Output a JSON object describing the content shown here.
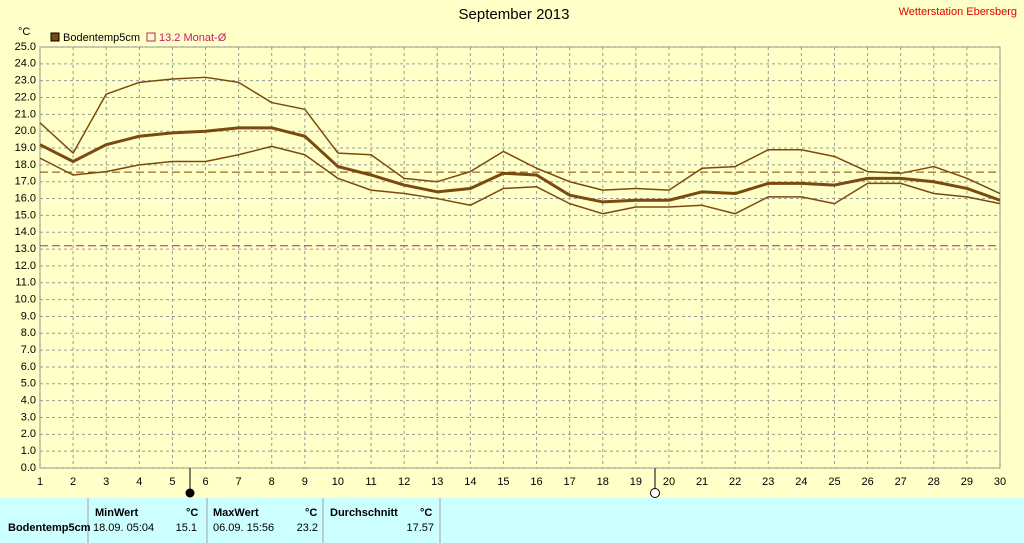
{
  "chart_data": {
    "type": "line",
    "title": "September 2013",
    "station": "Wetterstation Ebersberg",
    "y_unit": "°C",
    "x": [
      1,
      2,
      3,
      4,
      5,
      6,
      7,
      8,
      9,
      10,
      11,
      12,
      13,
      14,
      15,
      16,
      17,
      18,
      19,
      20,
      21,
      22,
      23,
      24,
      25,
      26,
      27,
      28,
      29,
      30
    ],
    "xlim": [
      1,
      30
    ],
    "xticks": [
      1,
      2,
      3,
      4,
      5,
      6,
      7,
      8,
      9,
      10,
      11,
      12,
      13,
      14,
      15,
      16,
      17,
      18,
      19,
      20,
      21,
      22,
      23,
      24,
      25,
      26,
      27,
      28,
      29,
      30
    ],
    "ylim": [
      0,
      25
    ],
    "yticks": [
      {
        "value": 0,
        "label": "0.0"
      },
      {
        "value": 1,
        "label": "1.0"
      },
      {
        "value": 2,
        "label": "2.0"
      },
      {
        "value": 3,
        "label": "3.0"
      },
      {
        "value": 4,
        "label": "4.0"
      },
      {
        "value": 5,
        "label": "5.0"
      },
      {
        "value": 6,
        "label": "6.0"
      },
      {
        "value": 7,
        "label": "7.0"
      },
      {
        "value": 8,
        "label": "8.0"
      },
      {
        "value": 9,
        "label": "9.0"
      },
      {
        "value": 10,
        "label": "10.0"
      },
      {
        "value": 11,
        "label": "11.0"
      },
      {
        "value": 12,
        "label": "12.0"
      },
      {
        "value": 13,
        "label": "13.0"
      },
      {
        "value": 14,
        "label": "14.0"
      },
      {
        "value": 15,
        "label": "15.0"
      },
      {
        "value": 16,
        "label": "16.0"
      },
      {
        "value": 17,
        "label": "17.0"
      },
      {
        "value": 18,
        "label": "18.0"
      },
      {
        "value": 19,
        "label": "19.0"
      },
      {
        "value": 20,
        "label": "20.0"
      },
      {
        "value": 21,
        "label": "21.0"
      },
      {
        "value": 22,
        "label": "22.0"
      },
      {
        "value": 23,
        "label": "23.0"
      },
      {
        "value": 24,
        "label": "24.0"
      },
      {
        "value": 25,
        "label": "25.0"
      }
    ],
    "grid": true,
    "series": [
      {
        "name": "Bodentemp5cm",
        "color": "#7a4a10",
        "width": 3,
        "values": [
          19.2,
          18.2,
          19.2,
          19.7,
          19.9,
          20.0,
          20.2,
          20.2,
          19.7,
          17.9,
          17.4,
          16.8,
          16.4,
          16.6,
          17.5,
          17.4,
          16.2,
          15.8,
          15.9,
          15.9,
          16.4,
          16.3,
          16.9,
          16.9,
          16.8,
          17.2,
          17.2,
          17.0,
          16.6,
          15.9
        ]
      },
      {
        "color": "#7a4a10",
        "width": 1.5,
        "values": [
          20.5,
          18.7,
          22.2,
          22.9,
          23.1,
          23.2,
          22.9,
          21.7,
          21.3,
          18.7,
          18.6,
          17.2,
          17.0,
          17.6,
          18.8,
          17.8,
          17.0,
          16.5,
          16.6,
          16.5,
          17.8,
          17.9,
          18.9,
          18.9,
          18.5,
          17.6,
          17.5,
          17.9,
          17.2,
          16.3
        ]
      },
      {
        "color": "#7a4a10",
        "width": 1.5,
        "values": [
          18.4,
          17.4,
          17.6,
          18.0,
          18.2,
          18.2,
          18.6,
          19.1,
          18.6,
          17.2,
          16.5,
          16.3,
          16.0,
          15.6,
          16.6,
          16.7,
          15.7,
          15.1,
          15.5,
          15.5,
          15.6,
          15.1,
          16.1,
          16.1,
          15.7,
          16.9,
          16.9,
          16.3,
          16.1,
          15.7
        ]
      }
    ],
    "reference_lines": [
      {
        "value": 13.2,
        "label": "13.2 Monat-Ø",
        "color": "#c0206a"
      }
    ]
  },
  "stats": {
    "headers": [
      "MinWert",
      "°C",
      "MaxWert",
      "°C",
      "Durchschnitt",
      "°C"
    ],
    "row": {
      "name": "Bodentemp5cm",
      "min_time": "18.09.  05:04",
      "min": 15.1,
      "max_time": "06.09.  15:56",
      "max": 23.2,
      "avg": 17.57
    }
  }
}
